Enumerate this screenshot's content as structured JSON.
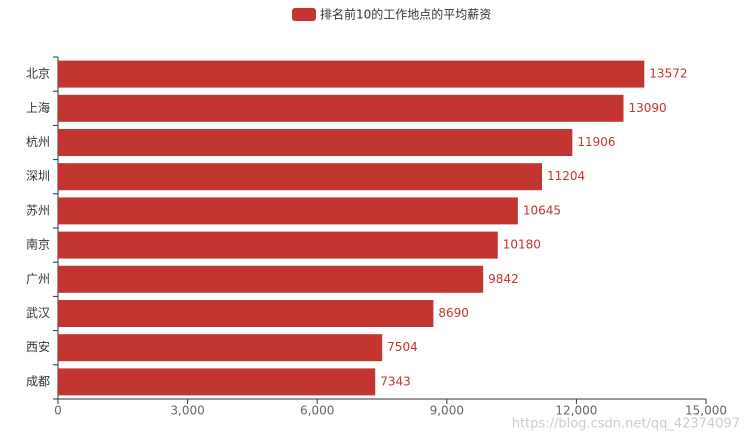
{
  "chart_data": {
    "type": "hbar",
    "legend": "排名前10的工作地点的平均薪资",
    "color": "#c23531",
    "categories": [
      "北京",
      "上海",
      "杭州",
      "深圳",
      "苏州",
      "南京",
      "广州",
      "武汉",
      "西安",
      "成都"
    ],
    "values": [
      13572,
      13090,
      11906,
      11204,
      10645,
      10180,
      9842,
      8690,
      7504,
      7343
    ],
    "xlim": [
      0,
      15000
    ],
    "xticks": [
      0,
      {
        "value": 3000,
        "label": "3,000"
      },
      {
        "value": 6000,
        "label": "6,000"
      },
      {
        "value": 9000,
        "label": "9,000"
      },
      {
        "value": 12000,
        "label": "12,000"
      },
      {
        "value": 15000,
        "label": "15,000"
      }
    ],
    "grid": false,
    "watermark": "https://blog.csdn.net/qq_42374097"
  }
}
